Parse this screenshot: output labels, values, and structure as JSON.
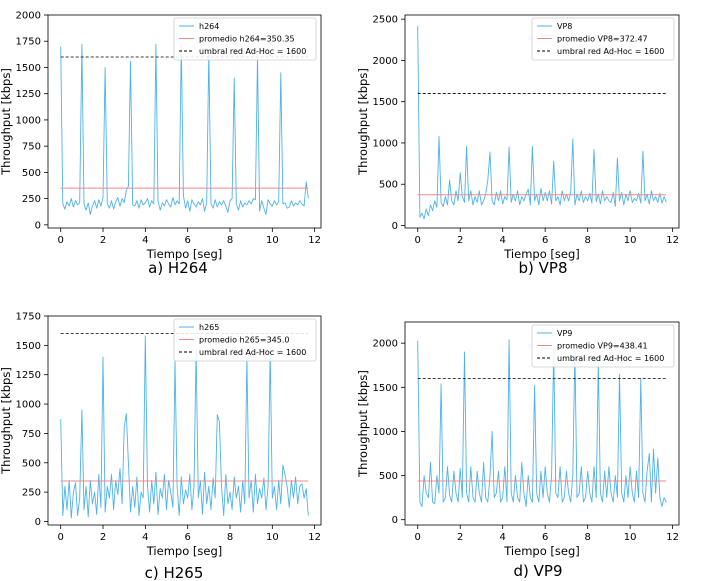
{
  "chart_data": [
    {
      "type": "line",
      "caption": "a) H264",
      "xlabel": "Tiempo [seg]",
      "ylabel": "Throughput [kbps]",
      "xlim": [
        -0.6,
        12.3
      ],
      "ylim": [
        -30,
        2000
      ],
      "xticks": [
        0,
        2,
        4,
        6,
        8,
        10,
        12
      ],
      "yticks": [
        0,
        250,
        500,
        750,
        1000,
        1250,
        1500,
        1750,
        2000
      ],
      "legend_position": "top-right",
      "series": [
        {
          "name": "h264",
          "color": "#4fb3e8",
          "x": [
            0.0,
            0.1,
            0.2,
            0.3,
            0.4,
            0.5,
            0.6,
            0.7,
            0.8,
            0.9,
            1.0,
            1.1,
            1.2,
            1.3,
            1.4,
            1.5,
            1.6,
            1.7,
            1.8,
            1.9,
            2.0,
            2.1,
            2.2,
            2.3,
            2.4,
            2.5,
            2.6,
            2.7,
            2.8,
            2.9,
            3.0,
            3.1,
            3.2,
            3.3,
            3.4,
            3.5,
            3.6,
            3.7,
            3.8,
            3.9,
            4.0,
            4.1,
            4.2,
            4.3,
            4.4,
            4.5,
            4.6,
            4.7,
            4.8,
            4.9,
            5.0,
            5.1,
            5.2,
            5.3,
            5.4,
            5.5,
            5.6,
            5.7,
            5.8,
            5.9,
            6.0,
            6.1,
            6.2,
            6.3,
            6.4,
            6.5,
            6.6,
            6.7,
            6.8,
            6.9,
            7.0,
            7.1,
            7.2,
            7.3,
            7.4,
            7.5,
            7.6,
            7.7,
            7.8,
            7.9,
            8.0,
            8.1,
            8.2,
            8.3,
            8.4,
            8.5,
            8.6,
            8.7,
            8.8,
            8.9,
            9.0,
            9.1,
            9.2,
            9.3,
            9.4,
            9.5,
            9.6,
            9.7,
            9.8,
            9.9,
            10.0,
            10.1,
            10.2,
            10.3,
            10.4,
            10.5,
            10.6,
            10.7,
            10.8,
            10.9,
            11.0,
            11.1,
            11.2,
            11.3,
            11.4,
            11.5,
            11.6,
            11.7
          ],
          "y": [
            1700,
            200,
            150,
            220,
            180,
            250,
            170,
            230,
            190,
            210,
            1720,
            200,
            140,
            210,
            100,
            180,
            230,
            160,
            240,
            180,
            260,
            1500,
            200,
            160,
            230,
            150,
            220,
            260,
            180,
            250,
            210,
            330,
            370,
            1560,
            190,
            180,
            230,
            160,
            240,
            190,
            210,
            250,
            170,
            230,
            200,
            1720,
            230,
            140,
            210,
            180,
            240,
            200,
            170,
            260,
            190,
            230,
            200,
            1720,
            280,
            160,
            230,
            130,
            240,
            200,
            170,
            220,
            190,
            250,
            130,
            210,
            1650,
            200,
            160,
            240,
            170,
            220,
            190,
            230,
            180,
            120,
            230,
            250,
            1400,
            200,
            140,
            230,
            170,
            210,
            190,
            230,
            200,
            250,
            240,
            1600,
            130,
            230,
            160,
            100,
            240,
            200,
            180,
            230,
            190,
            220,
            1450,
            200,
            210,
            160,
            170,
            230,
            180,
            210,
            190,
            230,
            200,
            180,
            410,
            250
          ]
        },
        {
          "name": "promedio h264=350.35",
          "color": "#f08a8a",
          "constant": 350.35
        },
        {
          "name": "umbral red Ad-Hoc = 1600",
          "color": "#000000",
          "dashed": true,
          "constant": 1600
        }
      ]
    },
    {
      "type": "line",
      "caption": "b) VP8",
      "xlabel": "Tiempo [seg]",
      "ylabel": "Throughput [kbps]",
      "xlim": [
        -0.6,
        12.3
      ],
      "ylim": [
        -30,
        2550
      ],
      "xticks": [
        0,
        2,
        4,
        6,
        8,
        10,
        12
      ],
      "yticks": [
        0,
        500,
        1000,
        1500,
        2000,
        2500
      ],
      "legend_position": "top-right",
      "series": [
        {
          "name": "VP8",
          "color": "#4fb3e8",
          "x": [
            0.0,
            0.1,
            0.2,
            0.3,
            0.4,
            0.5,
            0.6,
            0.7,
            0.8,
            0.9,
            1.0,
            1.1,
            1.2,
            1.3,
            1.4,
            1.5,
            1.6,
            1.7,
            1.8,
            1.9,
            2.0,
            2.1,
            2.2,
            2.3,
            2.4,
            2.5,
            2.6,
            2.7,
            2.8,
            2.9,
            3.0,
            3.1,
            3.2,
            3.3,
            3.4,
            3.5,
            3.6,
            3.7,
            3.8,
            3.9,
            4.0,
            4.1,
            4.2,
            4.3,
            4.4,
            4.5,
            4.6,
            4.7,
            4.8,
            4.9,
            5.0,
            5.1,
            5.2,
            5.3,
            5.4,
            5.5,
            5.6,
            5.7,
            5.8,
            5.9,
            6.0,
            6.1,
            6.2,
            6.3,
            6.4,
            6.5,
            6.6,
            6.7,
            6.8,
            6.9,
            7.0,
            7.1,
            7.2,
            7.3,
            7.4,
            7.5,
            7.6,
            7.7,
            7.8,
            7.9,
            8.0,
            8.1,
            8.2,
            8.3,
            8.4,
            8.5,
            8.6,
            8.7,
            8.8,
            8.9,
            9.0,
            9.1,
            9.2,
            9.3,
            9.4,
            9.5,
            9.6,
            9.7,
            9.8,
            9.9,
            10.0,
            10.1,
            10.2,
            10.3,
            10.4,
            10.5,
            10.6,
            10.7,
            10.8,
            10.9,
            11.0,
            11.1,
            11.2,
            11.3,
            11.4,
            11.5,
            11.6,
            11.7
          ],
          "y": [
            2420,
            100,
            150,
            80,
            200,
            120,
            250,
            180,
            300,
            220,
            1080,
            280,
            230,
            350,
            250,
            550,
            300,
            250,
            420,
            300,
            640,
            350,
            280,
            960,
            300,
            420,
            250,
            350,
            280,
            420,
            250,
            300,
            380,
            550,
            890,
            300,
            250,
            400,
            300,
            420,
            260,
            350,
            310,
            950,
            280,
            380,
            300,
            420,
            250,
            350,
            300,
            380,
            440,
            250,
            960,
            300,
            380,
            250,
            450,
            300,
            400,
            300,
            420,
            260,
            780,
            300,
            350,
            250,
            420,
            300,
            380,
            300,
            400,
            1050,
            250,
            380,
            300,
            420,
            280,
            350,
            300,
            390,
            270,
            920,
            290,
            380,
            260,
            420,
            300,
            350,
            300,
            280,
            400,
            230,
            820,
            300,
            400,
            250,
            380,
            300,
            420,
            280,
            330,
            300,
            390,
            270,
            900,
            300,
            380,
            260,
            420,
            300,
            350,
            280,
            390,
            270,
            350,
            280
          ]
        },
        {
          "name": "promedio VP8=372.47",
          "color": "#f08a8a",
          "constant": 372.47
        },
        {
          "name": "umbral red Ad-Hoc = 1600",
          "color": "#000000",
          "dashed": true,
          "constant": 1600
        }
      ]
    },
    {
      "type": "line",
      "caption": "c) H265",
      "xlabel": "Tiempo [seg]",
      "ylabel": "Throughput [kbps]",
      "xlim": [
        -0.6,
        12.3
      ],
      "ylim": [
        -30,
        1750
      ],
      "xticks": [
        0,
        2,
        4,
        6,
        8,
        10,
        12
      ],
      "yticks": [
        0,
        250,
        500,
        750,
        1000,
        1250,
        1500,
        1750
      ],
      "legend_position": "top-right",
      "series": [
        {
          "name": "h265",
          "color": "#4fb3e8",
          "x": [
            0.0,
            0.1,
            0.2,
            0.3,
            0.4,
            0.5,
            0.6,
            0.7,
            0.8,
            0.9,
            1.0,
            1.1,
            1.2,
            1.3,
            1.4,
            1.5,
            1.6,
            1.7,
            1.8,
            1.9,
            2.0,
            2.1,
            2.2,
            2.3,
            2.4,
            2.5,
            2.6,
            2.7,
            2.8,
            2.9,
            3.0,
            3.1,
            3.2,
            3.3,
            3.4,
            3.5,
            3.6,
            3.7,
            3.8,
            3.9,
            4.0,
            4.1,
            4.2,
            4.3,
            4.4,
            4.5,
            4.6,
            4.7,
            4.8,
            4.9,
            5.0,
            5.1,
            5.2,
            5.3,
            5.4,
            5.5,
            5.6,
            5.7,
            5.8,
            5.9,
            6.0,
            6.1,
            6.2,
            6.3,
            6.4,
            6.5,
            6.6,
            6.7,
            6.8,
            6.9,
            7.0,
            7.1,
            7.2,
            7.3,
            7.4,
            7.5,
            7.6,
            7.7,
            7.8,
            7.9,
            8.0,
            8.1,
            8.2,
            8.3,
            8.4,
            8.5,
            8.6,
            8.7,
            8.8,
            8.9,
            9.0,
            9.1,
            9.2,
            9.3,
            9.4,
            9.5,
            9.6,
            9.7,
            9.8,
            9.9,
            10.0,
            10.1,
            10.2,
            10.3,
            10.4,
            10.5,
            10.6,
            10.7,
            10.8,
            10.9,
            11.0,
            11.1,
            11.2,
            11.3,
            11.4,
            11.5,
            11.6,
            11.7
          ],
          "y": [
            870,
            50,
            300,
            100,
            350,
            30,
            250,
            330,
            50,
            200,
            950,
            100,
            300,
            40,
            350,
            150,
            250,
            60,
            400,
            120,
            1400,
            80,
            300,
            200,
            400,
            100,
            350,
            230,
            450,
            150,
            800,
            920,
            500,
            80,
            300,
            120,
            380,
            50,
            250,
            200,
            1580,
            300,
            80,
            350,
            150,
            420,
            60,
            280,
            200,
            400,
            100,
            350,
            250,
            120,
            1370,
            300,
            50,
            380,
            150,
            270,
            200,
            400,
            100,
            300,
            1470,
            200,
            350,
            60,
            420,
            150,
            300,
            100,
            370,
            200,
            910,
            850,
            300,
            50,
            400,
            150,
            250,
            100,
            380,
            200,
            300,
            80,
            350,
            150,
            1400,
            200,
            350,
            80,
            400,
            150,
            280,
            200,
            370,
            100,
            300,
            1450,
            200,
            300,
            100,
            350,
            150,
            480,
            400,
            300,
            120,
            350,
            200,
            380,
            150,
            300,
            320,
            200,
            280,
            50
          ]
        },
        {
          "name": "promedio h265=345.0",
          "color": "#f08a8a",
          "constant": 345.0
        },
        {
          "name": "umbral red Ad-Hoc = 1600",
          "color": "#000000",
          "dashed": true,
          "constant": 1600
        }
      ]
    },
    {
      "type": "line",
      "caption": "d) VP9",
      "xlabel": "Tiempo [seg]",
      "ylabel": "Throughput [kbps]",
      "xlim": [
        -0.6,
        12.3
      ],
      "ylim": [
        -60,
        2240
      ],
      "xticks": [
        0,
        2,
        4,
        6,
        8,
        10,
        12
      ],
      "yticks": [
        0,
        500,
        1000,
        1500,
        2000
      ],
      "legend_position": "top-right",
      "series": [
        {
          "name": "VP9",
          "color": "#4fb3e8",
          "x": [
            0.0,
            0.1,
            0.2,
            0.3,
            0.4,
            0.5,
            0.6,
            0.7,
            0.8,
            0.9,
            1.0,
            1.1,
            1.2,
            1.3,
            1.4,
            1.5,
            1.6,
            1.7,
            1.8,
            1.9,
            2.0,
            2.1,
            2.2,
            2.3,
            2.4,
            2.5,
            2.6,
            2.7,
            2.8,
            2.9,
            3.0,
            3.1,
            3.2,
            3.3,
            3.4,
            3.5,
            3.6,
            3.7,
            3.8,
            3.9,
            4.0,
            4.1,
            4.2,
            4.3,
            4.4,
            4.5,
            4.6,
            4.7,
            4.8,
            4.9,
            5.0,
            5.1,
            5.2,
            5.3,
            5.4,
            5.5,
            5.6,
            5.7,
            5.8,
            5.9,
            6.0,
            6.1,
            6.2,
            6.3,
            6.4,
            6.5,
            6.6,
            6.7,
            6.8,
            6.9,
            7.0,
            7.1,
            7.2,
            7.3,
            7.4,
            7.5,
            7.6,
            7.7,
            7.8,
            7.9,
            8.0,
            8.1,
            8.2,
            8.3,
            8.4,
            8.5,
            8.6,
            8.7,
            8.8,
            8.9,
            9.0,
            9.1,
            9.2,
            9.3,
            9.4,
            9.5,
            9.6,
            9.7,
            9.8,
            9.9,
            10.0,
            10.1,
            10.2,
            10.3,
            10.4,
            10.5,
            10.6,
            10.7,
            10.8,
            10.9,
            11.0,
            11.1,
            11.2,
            11.3,
            11.4,
            11.5,
            11.6,
            11.7
          ],
          "y": [
            2030,
            200,
            150,
            500,
            300,
            250,
            650,
            200,
            180,
            500,
            300,
            1540,
            200,
            250,
            600,
            280,
            200,
            550,
            300,
            200,
            580,
            250,
            1900,
            300,
            200,
            600,
            250,
            200,
            550,
            300,
            200,
            650,
            250,
            200,
            500,
            1000,
            250,
            300,
            550,
            200,
            250,
            600,
            200,
            2040,
            300,
            200,
            500,
            250,
            200,
            650,
            300,
            150,
            500,
            250,
            200,
            1520,
            300,
            200,
            550,
            250,
            600,
            300,
            200,
            500,
            1950,
            300,
            250,
            600,
            200,
            250,
            550,
            300,
            200,
            500,
            1920,
            250,
            300,
            600,
            200,
            250,
            550,
            300,
            200,
            600,
            250,
            1790,
            300,
            200,
            550,
            250,
            600,
            300,
            200,
            500,
            250,
            1650,
            300,
            200,
            500,
            250,
            600,
            300,
            200,
            550,
            250,
            1600,
            300,
            200,
            550,
            750,
            200,
            800,
            300,
            700,
            250,
            150,
            250,
            200
          ]
        },
        {
          "name": "promedio VP9=438.41",
          "color": "#f08a8a",
          "constant": 438.41
        },
        {
          "name": "umbral red Ad-Hoc = 1600",
          "color": "#000000",
          "dashed": true,
          "constant": 1600
        }
      ]
    }
  ]
}
